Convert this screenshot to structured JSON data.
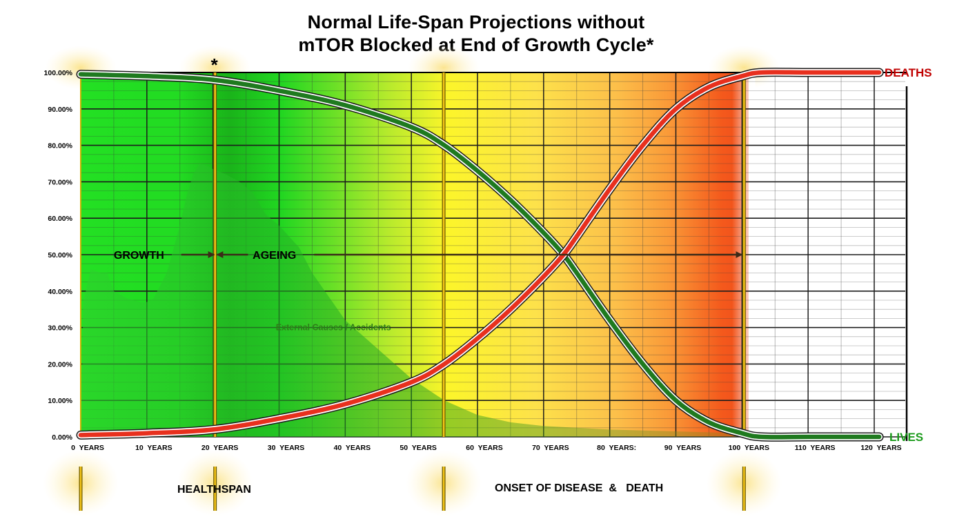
{
  "title_line1": "Normal Life-Span Projections without",
  "title_line2": "mTOR Blocked at End of Growth Cycle*",
  "chart_data": {
    "type": "line",
    "x": [
      0,
      10,
      20,
      30,
      40,
      50,
      55,
      60,
      65,
      70,
      73,
      75,
      80,
      85,
      90,
      95,
      100,
      103,
      110,
      120
    ],
    "x_ticks": [
      "0  YEARS",
      "10  YEARS",
      "20  YEARS",
      "30  YEARS",
      "40  YEARS",
      "50  YEARS",
      "60  YEARS",
      "70  YEARS",
      "80  YEARS:",
      "90  YEARS",
      "100  YEARS",
      "110  YEARS",
      "120  YEARS"
    ],
    "x_tick_values": [
      0,
      10,
      20,
      30,
      40,
      50,
      60,
      70,
      80,
      90,
      100,
      110,
      120
    ],
    "y_ticks": [
      "0.00%",
      "10.00%",
      "20.00%",
      "30.00%",
      "40.00%",
      "50.00%",
      "60.00%",
      "70.00%",
      "80.00%",
      "90.00%",
      "100.00%"
    ],
    "xlim": [
      0,
      120
    ],
    "ylim": [
      0,
      100
    ],
    "grid": true,
    "series": [
      {
        "name": "DEATHS",
        "color": "#e8301e",
        "values": [
          0.5,
          1,
          2,
          5,
          9,
          15,
          20,
          27,
          35,
          44,
          50,
          55,
          68,
          80,
          90,
          96,
          99,
          100,
          100,
          100
        ]
      },
      {
        "name": "LIVES",
        "color": "#1f7a1f",
        "values": [
          99.5,
          99,
          98,
          95,
          91,
          85,
          80,
          73,
          65,
          56,
          50,
          45,
          32,
          20,
          10,
          4,
          1,
          0,
          0,
          0
        ]
      },
      {
        "name": "External Causes / Accidents",
        "color": "#2fa52f",
        "type": "area",
        "x": [
          0,
          0.4,
          1.5,
          3,
          4,
          5,
          7,
          9,
          10,
          11,
          13,
          15,
          16,
          17,
          18,
          19,
          20,
          22,
          24,
          26,
          28,
          30,
          33,
          35,
          40,
          45,
          50,
          55,
          60,
          65,
          70,
          80,
          100
        ],
        "values": [
          0,
          37,
          46,
          45,
          45,
          40,
          38,
          37,
          37,
          38,
          45,
          58,
          66,
          72,
          75,
          74.5,
          73.5,
          72,
          70,
          67,
          61,
          58,
          52,
          45,
          32,
          24,
          16,
          10,
          6,
          4,
          3,
          2,
          1
        ]
      }
    ],
    "marker_ages": [
      20,
      55,
      100
    ],
    "growth_label": "GROWTH",
    "ageing_label": "AGEING",
    "star": "*",
    "annotation": "External Causes / Accidents",
    "deaths_label": "DEATHS",
    "lives_label": "LIVES",
    "colors": {
      "deaths": "#c00000",
      "lives": "#1a9a1a",
      "gradient": [
        "#1fe01f",
        "#22d022",
        "#fbf52a",
        "#fde84a",
        "#fbb040",
        "#f4581c"
      ]
    }
  },
  "bottom": {
    "left_label": "HEALTHSPAN",
    "right_label": "ONSET OF DISEASE  &   DEATH"
  }
}
